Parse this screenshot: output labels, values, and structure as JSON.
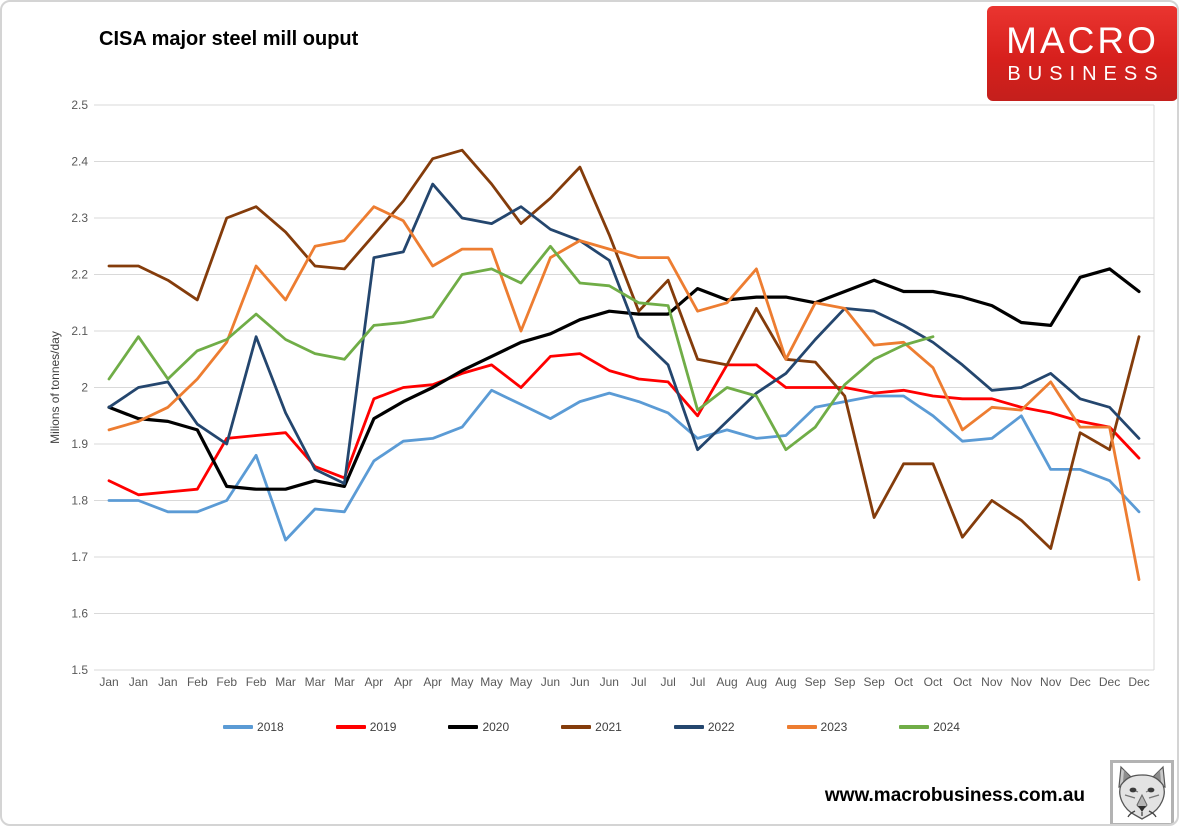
{
  "title": "CISA major steel mill ouput",
  "logo": {
    "line1": "MACRO",
    "line2": "BUSINESS",
    "bg_color": "#d7201d"
  },
  "footer": {
    "website": "www.macrobusiness.com.au",
    "icon": "wolf-sketch-icon"
  },
  "chart_data": {
    "type": "line",
    "title": "CISA major steel mill ouput",
    "xlabel": "",
    "ylabel": "Milions of tonnes/day",
    "ylim": [
      1.5,
      2.5
    ],
    "ytick_step": 0.1,
    "ytick_labels": [
      "2.5",
      "2.4",
      "2.3",
      "2.2",
      "2.1",
      "2",
      "1.9",
      "1.8",
      "1.7",
      "1.6",
      "1.5"
    ],
    "grid": "horizontal",
    "gridline_color": "#d9d9d9",
    "tick_label_color": "#595959",
    "legend_position": "bottom",
    "categories": [
      "Jan",
      "Jan",
      "Jan",
      "Feb",
      "Feb",
      "Feb",
      "Mar",
      "Mar",
      "Mar",
      "Apr",
      "Apr",
      "Apr",
      "May",
      "May",
      "May",
      "Jun",
      "Jun",
      "Jun",
      "Jul",
      "Jul",
      "Jul",
      "Aug",
      "Aug",
      "Aug",
      "Sep",
      "Sep",
      "Sep",
      "Oct",
      "Oct",
      "Oct",
      "Nov",
      "Nov",
      "Nov",
      "Dec",
      "Dec",
      "Dec"
    ],
    "series": [
      {
        "name": "2018",
        "color": "#5b9bd5",
        "values": [
          1.8,
          1.8,
          1.78,
          1.78,
          1.8,
          1.88,
          1.73,
          1.785,
          1.78,
          1.87,
          1.905,
          1.91,
          1.93,
          1.995,
          1.97,
          1.945,
          1.975,
          1.99,
          1.975,
          1.955,
          1.91,
          1.925,
          1.91,
          1.915,
          1.965,
          1.975,
          1.985,
          1.985,
          1.95,
          1.905,
          1.91,
          1.95,
          1.855,
          1.855,
          1.835,
          1.78
        ]
      },
      {
        "name": "2019",
        "color": "#ff0000",
        "values": [
          1.835,
          1.81,
          1.815,
          1.82,
          1.91,
          1.915,
          1.92,
          1.86,
          1.84,
          1.98,
          2.0,
          2.005,
          2.025,
          2.04,
          2.0,
          2.055,
          2.06,
          2.03,
          2.015,
          2.01,
          1.95,
          2.04,
          2.04,
          2.0,
          2.0,
          2.0,
          1.99,
          1.995,
          1.985,
          1.98,
          1.98,
          1.965,
          1.955,
          1.94,
          1.93,
          1.875
        ]
      },
      {
        "name": "2020",
        "color": "#000000",
        "values": [
          1.965,
          1.945,
          1.94,
          1.925,
          1.825,
          1.82,
          1.82,
          1.835,
          1.825,
          1.945,
          1.975,
          2.0,
          2.03,
          2.055,
          2.08,
          2.095,
          2.12,
          2.135,
          2.13,
          2.13,
          2.175,
          2.155,
          2.16,
          2.16,
          2.15,
          2.17,
          2.19,
          2.17,
          2.17,
          2.16,
          2.145,
          2.115,
          2.11,
          2.195,
          2.21,
          2.17
        ]
      },
      {
        "name": "2021",
        "color": "#843c0b",
        "values": [
          2.215,
          2.215,
          2.19,
          2.155,
          2.3,
          2.32,
          2.275,
          2.215,
          2.21,
          2.27,
          2.33,
          2.405,
          2.42,
          2.36,
          2.29,
          2.335,
          2.39,
          2.27,
          2.135,
          2.19,
          2.05,
          2.04,
          2.14,
          2.05,
          2.045,
          1.985,
          1.77,
          1.865,
          1.865,
          1.735,
          1.8,
          1.765,
          1.715,
          1.92,
          1.89,
          2.09
        ]
      },
      {
        "name": "2022",
        "color": "#24466e",
        "values": [
          1.965,
          2.0,
          2.01,
          1.935,
          1.9,
          2.09,
          1.955,
          1.855,
          1.83,
          2.23,
          2.24,
          2.36,
          2.3,
          2.29,
          2.32,
          2.28,
          2.26,
          2.225,
          2.09,
          2.04,
          1.89,
          1.94,
          1.99,
          2.025,
          2.085,
          2.14,
          2.135,
          2.11,
          2.08,
          2.04,
          1.995,
          2.0,
          2.025,
          1.98,
          1.965,
          1.91
        ]
      },
      {
        "name": "2023",
        "color": "#ed7d31",
        "values": [
          1.925,
          1.94,
          1.965,
          2.015,
          2.08,
          2.215,
          2.155,
          2.25,
          2.26,
          2.32,
          2.295,
          2.215,
          2.245,
          2.245,
          2.1,
          2.23,
          2.26,
          2.245,
          2.23,
          2.23,
          2.135,
          2.15,
          2.21,
          2.05,
          2.15,
          2.14,
          2.075,
          2.08,
          2.035,
          1.925,
          1.965,
          1.96,
          2.01,
          1.93,
          1.93,
          1.66
        ]
      },
      {
        "name": "2024",
        "color": "#70ad47",
        "values": [
          2.015,
          2.09,
          2.015,
          2.065,
          2.085,
          2.13,
          2.085,
          2.06,
          2.05,
          2.11,
          2.115,
          2.125,
          2.2,
          2.21,
          2.185,
          2.25,
          2.185,
          2.18,
          2.15,
          2.145,
          1.96,
          2.0,
          1.985,
          1.89,
          1.93,
          2.005,
          2.05,
          2.075,
          2.09,
          null,
          null,
          null,
          null,
          null,
          null,
          null
        ]
      }
    ]
  }
}
